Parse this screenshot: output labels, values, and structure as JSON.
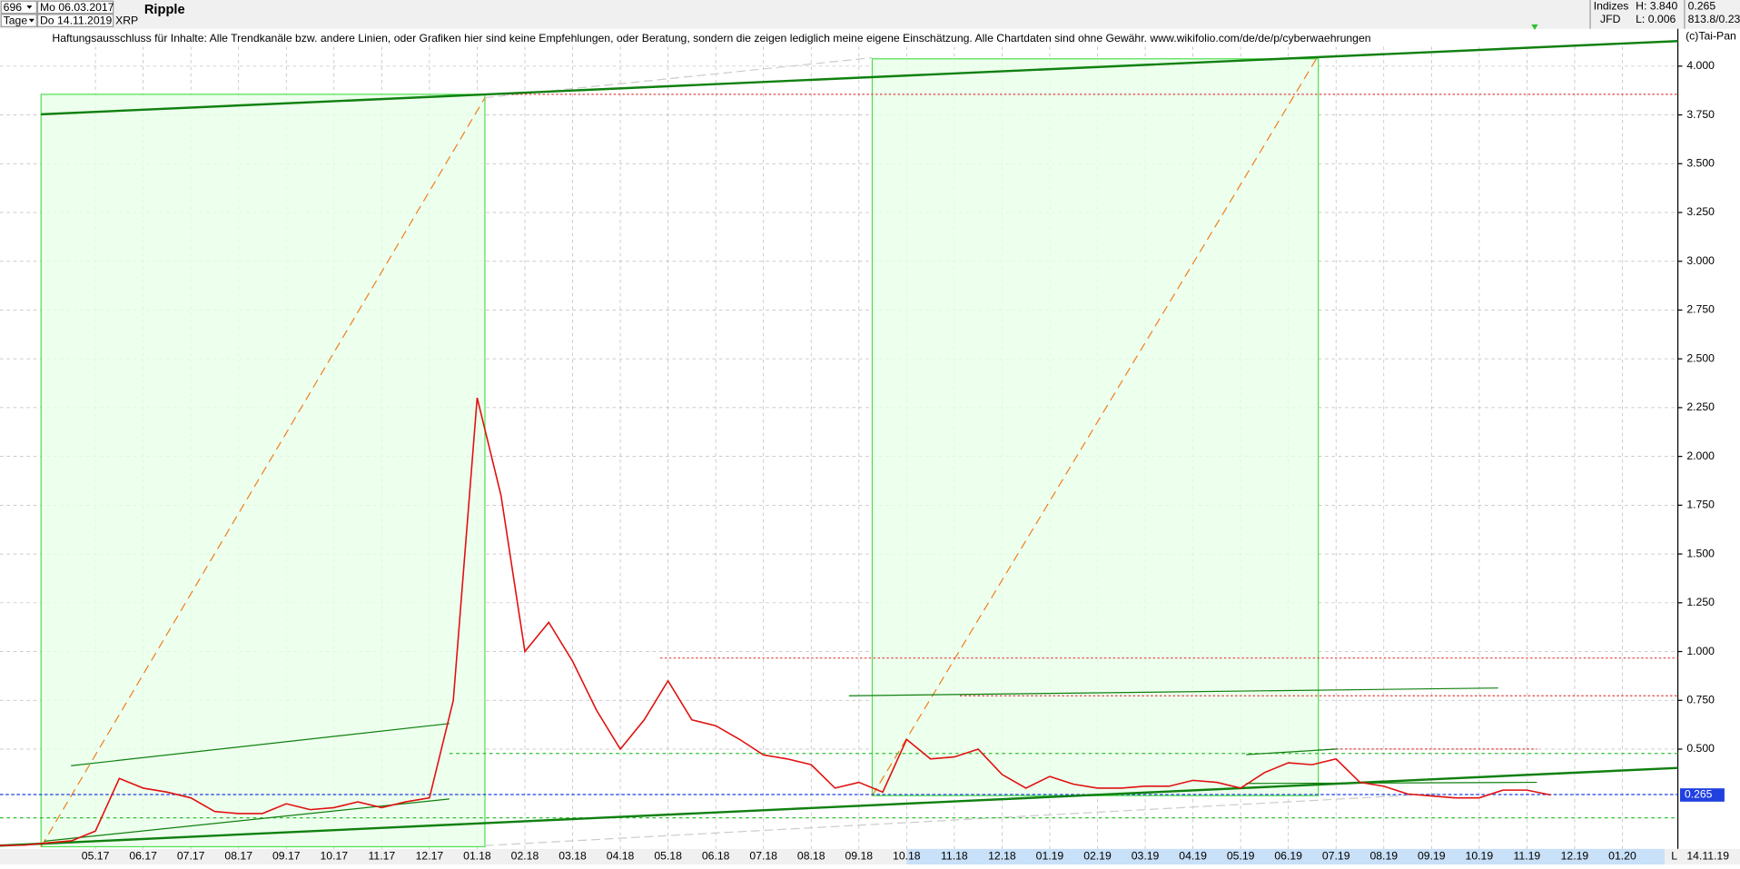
{
  "header": {
    "count": "696",
    "from": "Mo 06.03.2017",
    "period": "Tage",
    "to": "Do 14.11.2019",
    "symbol": "XRP",
    "group": "Indizes",
    "broker": "JFD",
    "high": "H: 3.840",
    "low": "L: 0.006",
    "last": "0.265",
    "info": "813.8/0.23",
    "copyright": "(c)Tai-Pan",
    "end_date": "14.11.19",
    "scale_mode": "L"
  },
  "chart_data": {
    "type": "line",
    "title": "Ripple",
    "annotation": "Haftungsausschluss für Inhalte: Alle Trendkanäle bzw. andere Linien, oder Grafiken hier sind keine Empfehlungen, oder Beratung, sondern die zeigen lediglich meine eigene Einschätzung. Alle Chartdaten sind ohne Gewähr.  www.wikifolio.com/de/de/p/cyberwaehrungen",
    "categories": [
      null,
      null,
      null,
      null,
      "05.17",
      null,
      "06.17",
      null,
      "07.17",
      null,
      "08.17",
      null,
      "09.17",
      null,
      "10.17",
      null,
      "11.17",
      null,
      "12.17",
      null,
      "01.18",
      null,
      "02.18",
      null,
      "03.18",
      null,
      "04.18",
      null,
      "05.18",
      null,
      "06.18",
      null,
      "07.18",
      null,
      "08.18",
      null,
      "09.18",
      null,
      "10.18",
      null,
      "11.18",
      null,
      "12.18",
      null,
      "01.19",
      null,
      "02.19",
      null,
      "03.19",
      null,
      "04.19",
      null,
      "05.19",
      null,
      "06.19",
      null,
      "07.19",
      null,
      "08.19",
      null,
      "09.19",
      null,
      "10.19",
      null,
      "11.19",
      null,
      "12.19",
      null,
      "01.20"
    ],
    "series": [
      {
        "name": "XRP",
        "color": "#e01010",
        "values": [
          0.006,
          0.008,
          0.02,
          0.03,
          0.08,
          0.35,
          0.3,
          0.28,
          0.25,
          0.18,
          0.17,
          0.17,
          0.22,
          0.19,
          0.2,
          0.23,
          0.2,
          0.23,
          0.25,
          0.75,
          2.3,
          1.8,
          1.0,
          1.15,
          0.95,
          0.7,
          0.5,
          0.65,
          0.85,
          0.65,
          0.62,
          0.55,
          0.47,
          0.45,
          0.42,
          0.3,
          0.33,
          0.28,
          0.55,
          0.45,
          0.46,
          0.5,
          0.37,
          0.3,
          0.36,
          0.32,
          0.3,
          0.3,
          0.31,
          0.31,
          0.34,
          0.33,
          0.3,
          0.38,
          0.43,
          0.42,
          0.45,
          0.33,
          0.31,
          0.27,
          0.26,
          0.25,
          0.25,
          0.29,
          0.29,
          0.265,
          null,
          null,
          null
        ]
      }
    ],
    "ylim": [
      0,
      4.1
    ],
    "yticks": [
      {
        "value": 0.5,
        "label": "0.500"
      },
      {
        "value": 0.75,
        "label": "0.750"
      },
      {
        "value": 1,
        "label": "1.000"
      },
      {
        "value": 1.25,
        "label": "1.250"
      },
      {
        "value": 1.5,
        "label": "1.500"
      },
      {
        "value": 1.75,
        "label": "1.750"
      },
      {
        "value": 2,
        "label": "2.000"
      },
      {
        "value": 2.25,
        "label": "2.250"
      },
      {
        "value": 2.5,
        "label": "2.500"
      },
      {
        "value": 2.75,
        "label": "2.750"
      },
      {
        "value": 3,
        "label": "3.000"
      },
      {
        "value": 3.25,
        "label": "3.250"
      },
      {
        "value": 3.5,
        "label": "3.500"
      },
      {
        "value": 3.75,
        "label": "3.750"
      },
      {
        "value": 4,
        "label": "4.000"
      }
    ],
    "last_value": 0.265,
    "grid": true
  }
}
